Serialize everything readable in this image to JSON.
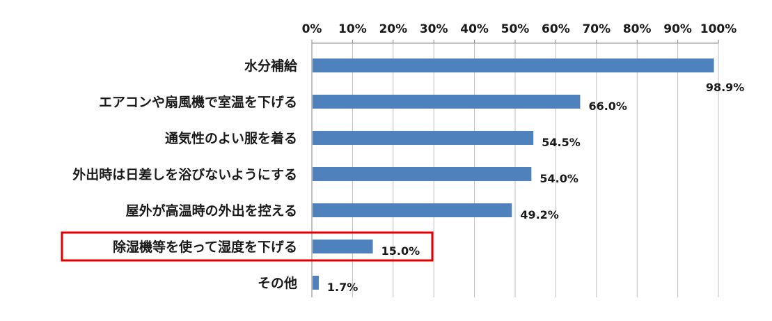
{
  "chart_data": {
    "type": "bar",
    "orientation": "horizontal",
    "categories": [
      "水分補給",
      "エアコンや扇風機で室温を下げる",
      "通気性のよい服を着る",
      "外出時は日差しを浴びないようにする",
      "屋外が高温時の外出を控える",
      "除湿機等を使って湿度を下げる",
      "その他"
    ],
    "values": [
      98.9,
      66.0,
      54.5,
      54.0,
      49.2,
      15.0,
      1.7
    ],
    "value_labels": [
      "98.9%",
      "66.0%",
      "54.5%",
      "54.0%",
      "49.2%",
      "15.0%",
      "1.7%"
    ],
    "x_ticks": [
      "0%",
      "10%",
      "20%",
      "30%",
      "40%",
      "50%",
      "60%",
      "70%",
      "80%",
      "90%",
      "100%"
    ],
    "xlim": [
      0,
      100
    ],
    "x_axis_position": "top",
    "grid": true,
    "bar_color": "#4f81bd",
    "highlight_color": "#e00000",
    "highlighted_category": "除湿機等を使って湿度を下げる"
  }
}
